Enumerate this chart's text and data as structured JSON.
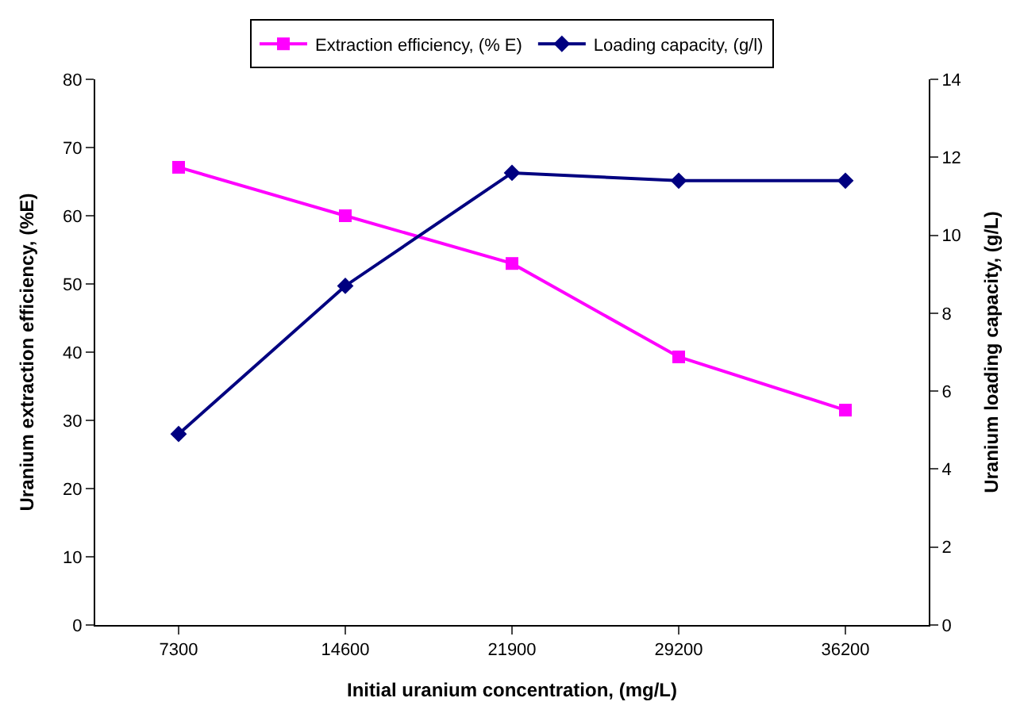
{
  "chart_data": {
    "type": "line",
    "xlabel": "Initial uranium concentration, (mg/L)",
    "ylabel": "Uranium extraction efficiency, (%E)",
    "y2label": "Uranium loading capacity, (g/L)",
    "categories": [
      "7300",
      "14600",
      "21900",
      "29200",
      "36200"
    ],
    "series": [
      {
        "name": "Extraction efficiency, (% E)",
        "color": "#ff00ff",
        "marker": "square",
        "values": [
          67.1,
          60.0,
          53.0,
          39.3,
          31.5
        ]
      },
      {
        "name": "Loading capacity, (g/l)",
        "color": "#000080",
        "marker": "diamond",
        "axis": "y2",
        "values": [
          4.9,
          8.7,
          11.6,
          11.4,
          11.4
        ]
      }
    ],
    "ylim": [
      0,
      80
    ],
    "yticks": [
      0,
      10,
      20,
      30,
      40,
      50,
      60,
      70,
      80
    ],
    "y2lim": [
      0,
      14
    ],
    "y2ticks": [
      0,
      2,
      4,
      6,
      8,
      10,
      12,
      14
    ],
    "legend": "top"
  }
}
